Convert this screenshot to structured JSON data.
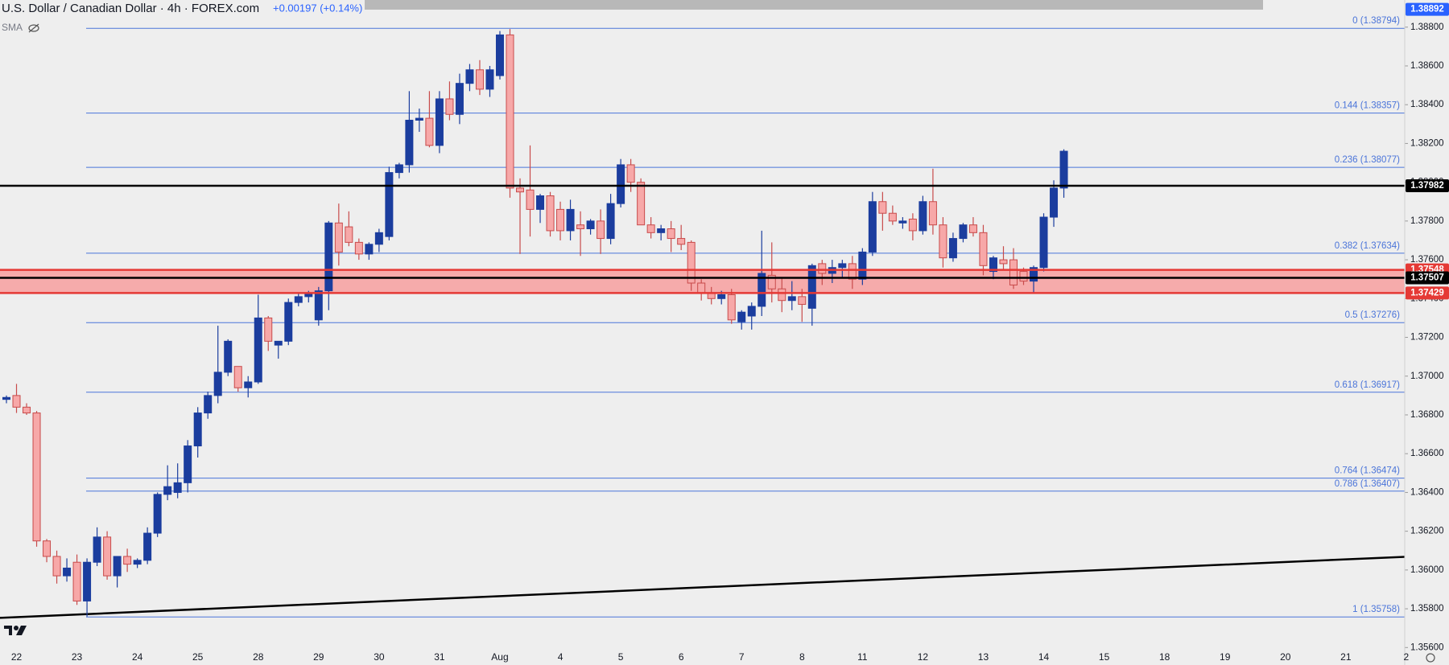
{
  "chart_data": {
    "type": "candlestick",
    "title": "U.S. Dollar / Canadian Dollar · 4h · FOREX.com",
    "subtitle": "+0.00197 (+0.14%)",
    "indicator": "SMA",
    "up_color": "#1b3d9e",
    "down_color": "#f7a8a8",
    "down_border": "#c84b4b",
    "categories": [
      null,
      "22",
      null,
      null,
      null,
      null,
      null,
      "23",
      null,
      null,
      null,
      null,
      null,
      "24",
      null,
      null,
      null,
      null,
      null,
      "25",
      null,
      null,
      null,
      null,
      null,
      "28",
      null,
      null,
      null,
      null,
      null,
      "29",
      null,
      null,
      null,
      null,
      null,
      "30",
      null,
      null,
      null,
      null,
      null,
      "31",
      null,
      null,
      null,
      null,
      null,
      "Aug",
      null,
      null,
      null,
      null,
      null,
      "4",
      null,
      null,
      null,
      null,
      null,
      "5",
      null,
      null,
      null,
      null,
      null,
      "6",
      null,
      null,
      null,
      null,
      null,
      "7",
      null,
      null,
      null,
      null,
      null,
      "8",
      null,
      null,
      null,
      null,
      null,
      "11",
      null,
      null,
      null,
      null,
      null,
      "12",
      null,
      null,
      null,
      null,
      null,
      "13",
      null,
      null,
      null,
      null,
      null,
      "14",
      null,
      null,
      null,
      null,
      null,
      "15",
      null,
      null,
      null,
      null,
      null,
      "18",
      null,
      null,
      null,
      null,
      null,
      "19",
      null,
      null,
      null,
      null,
      null,
      "20",
      null,
      null,
      null,
      null,
      null,
      "21",
      null,
      null,
      null,
      null,
      null,
      "2",
      null,
      null
    ],
    "open": [
      1.3688,
      1.369,
      1.3684,
      1.3681,
      1.3615,
      1.3607,
      1.3597,
      1.3604,
      1.3584,
      1.3604,
      1.3617,
      1.3597,
      1.3607,
      1.3603,
      1.3605,
      1.3619,
      1.3639,
      1.364,
      1.3645,
      1.3664,
      1.3681,
      1.369,
      1.3702,
      1.3705,
      1.3694,
      1.3697,
      1.373,
      1.3716,
      1.3718,
      1.3738,
      1.3741,
      1.3729,
      1.3744,
      1.3779,
      1.3777,
      1.3769,
      1.3763,
      1.3768,
      1.3772,
      1.3805,
      1.3809,
      1.3832,
      1.3833,
      1.3819,
      1.3843,
      1.3835,
      1.3851,
      1.3858,
      1.3848,
      1.3855,
      1.3876,
      1.3797,
      1.3796,
      1.3786,
      1.3793,
      1.3786,
      1.3775,
      1.3778,
      1.3776,
      1.378,
      1.3771,
      1.3789,
      1.3809,
      1.38,
      1.3778,
      1.3774,
      1.3776,
      1.3771,
      1.3769,
      1.3748,
      1.3743,
      1.374,
      1.3742,
      1.3728,
      1.3731,
      1.3736,
      1.3752,
      1.3745,
      1.3739,
      1.3741,
      1.3735,
      1.3758,
      1.3753,
      1.3756,
      1.3758,
      1.375,
      1.3764,
      1.379,
      1.3784,
      1.3779,
      1.3781,
      1.3775,
      1.379,
      1.3778,
      1.3761,
      1.3771,
      1.3778,
      1.3774,
      1.3754,
      1.376,
      1.376,
      1.3754,
      1.3749,
      1.3756,
      1.3782,
      1.3797,
      null,
      null,
      null,
      null,
      null,
      null,
      null,
      null,
      null,
      null,
      null,
      null,
      null,
      null,
      null,
      null,
      null,
      null,
      null,
      null,
      null,
      null,
      null,
      null,
      null,
      null,
      null,
      null,
      null,
      null,
      null,
      null,
      null,
      null,
      null,
      null
    ],
    "high": [
      1.369,
      1.3696,
      1.3686,
      1.3682,
      1.3616,
      1.361,
      1.3606,
      1.3608,
      1.3606,
      1.3622,
      1.362,
      1.3606,
      1.3611,
      1.3606,
      1.3622,
      1.364,
      1.3654,
      1.3655,
      1.3667,
      1.3684,
      1.3692,
      1.3726,
      1.3719,
      1.3705,
      1.37,
      1.3742,
      1.3731,
      1.3718,
      1.374,
      1.3743,
      1.3744,
      1.3746,
      1.378,
      1.3789,
      1.3785,
      1.3771,
      1.3769,
      1.3776,
      1.3808,
      1.381,
      1.3847,
      1.3838,
      1.3847,
      1.3847,
      1.3852,
      1.3856,
      1.3861,
      1.3863,
      1.386,
      1.3878,
      1.3879,
      1.3802,
      1.3819,
      1.3794,
      1.3795,
      1.379,
      1.3791,
      1.3785,
      1.3781,
      1.3786,
      1.3794,
      1.3812,
      1.3812,
      1.3802,
      1.3782,
      1.3778,
      1.378,
      1.3778,
      1.377,
      1.375,
      1.3746,
      1.3744,
      1.3745,
      1.3734,
      1.3738,
      1.3775,
      1.3769,
      1.3751,
      1.3749,
      1.3745,
      1.3758,
      1.376,
      1.376,
      1.376,
      1.3762,
      1.3766,
      1.3795,
      1.3795,
      1.3788,
      1.3782,
      1.3784,
      1.3793,
      1.3807,
      1.3782,
      1.3774,
      1.3779,
      1.3782,
      1.3778,
      1.3762,
      1.3767,
      1.3766,
      1.3756,
      1.3757,
      1.3784,
      1.3801,
      1.3817,
      null,
      null,
      null,
      null,
      null,
      null,
      null,
      null,
      null,
      null,
      null,
      null,
      null,
      null,
      null,
      null,
      null,
      null,
      null,
      null,
      null,
      null,
      null,
      null,
      null,
      null,
      null,
      null,
      null,
      null,
      null,
      null,
      null,
      null,
      null,
      null
    ],
    "low": [
      1.3686,
      1.3681,
      1.368,
      1.3612,
      1.3604,
      1.3593,
      1.3594,
      1.3582,
      1.3576,
      1.3602,
      1.3595,
      1.3591,
      1.3599,
      1.3601,
      1.3603,
      1.3617,
      1.3636,
      1.3637,
      1.364,
      1.3658,
      1.3678,
      1.3686,
      1.37,
      1.3692,
      1.3689,
      1.3696,
      1.3713,
      1.3709,
      1.3716,
      1.3736,
      1.3738,
      1.3726,
      1.3734,
      1.3757,
      1.3767,
      1.376,
      1.376,
      1.3764,
      1.377,
      1.3802,
      1.3805,
      1.3826,
      1.3818,
      1.3815,
      1.3832,
      1.383,
      1.3847,
      1.3845,
      1.3844,
      1.3853,
      1.3792,
      1.3763,
      1.3772,
      1.3779,
      1.3772,
      1.377,
      1.377,
      1.3762,
      1.3773,
      1.3763,
      1.3768,
      1.3787,
      1.3795,
      1.3778,
      1.3771,
      1.377,
      1.3764,
      1.3765,
      1.3744,
      1.3739,
      1.3737,
      1.3737,
      1.3727,
      1.3724,
      1.3724,
      1.3731,
      1.3738,
      1.3733,
      1.3734,
      1.3728,
      1.3726,
      1.3747,
      1.3748,
      1.3751,
      1.3745,
      1.3747,
      1.3762,
      1.3775,
      1.3778,
      1.3776,
      1.377,
      1.3773,
      1.3773,
      1.3756,
      1.3759,
      1.3769,
      1.3772,
      1.3752,
      1.375,
      1.3755,
      1.3745,
      1.3747,
      1.3743,
      1.3754,
      1.3777,
      1.3792,
      null,
      null,
      null,
      null,
      null,
      null,
      null,
      null,
      null,
      null,
      null,
      null,
      null,
      null,
      null,
      null,
      null,
      null,
      null,
      null,
      null,
      null,
      null,
      null,
      null,
      null,
      null,
      null,
      null,
      null,
      null,
      null,
      null,
      null,
      null,
      null
    ],
    "close": [
      1.3689,
      1.3684,
      1.3681,
      1.3615,
      1.3607,
      1.3597,
      1.3601,
      1.3584,
      1.3604,
      1.3617,
      1.3597,
      1.3607,
      1.3603,
      1.3605,
      1.3619,
      1.3639,
      1.3643,
      1.3645,
      1.3664,
      1.3681,
      1.369,
      1.3702,
      1.3718,
      1.3694,
      1.3697,
      1.373,
      1.3718,
      1.3718,
      1.3738,
      1.3741,
      1.3743,
      1.3744,
      1.3779,
      1.3764,
      1.3769,
      1.3763,
      1.3768,
      1.3774,
      1.3805,
      1.3809,
      1.3832,
      1.3833,
      1.3819,
      1.3843,
      1.3835,
      1.3851,
      1.3858,
      1.3848,
      1.3858,
      1.3876,
      1.3797,
      1.3795,
      1.3786,
      1.3793,
      1.3775,
      1.3775,
      1.3786,
      1.3776,
      1.378,
      1.3771,
      1.3789,
      1.3809,
      1.38,
      1.3778,
      1.3774,
      1.3776,
      1.3771,
      1.3768,
      1.3748,
      1.3743,
      1.374,
      1.3742,
      1.3729,
      1.3733,
      1.3736,
      1.3753,
      1.3745,
      1.3739,
      1.3741,
      1.3737,
      1.3757,
      1.3753,
      1.3756,
      1.3758,
      1.375,
      1.3764,
      1.379,
      1.3784,
      1.378,
      1.378,
      1.3775,
      1.379,
      1.3778,
      1.3761,
      1.3771,
      1.3778,
      1.3774,
      1.3757,
      1.3761,
      1.3758,
      1.3747,
      1.3749,
      1.3756,
      1.3782,
      1.3797,
      1.3816,
      null,
      null,
      null,
      null,
      null,
      null,
      null,
      null,
      null,
      null,
      null,
      null,
      null,
      null,
      null,
      null,
      null,
      null,
      null,
      null,
      null,
      null,
      null,
      null,
      null,
      null,
      null,
      null,
      null,
      null,
      null,
      null,
      null,
      null,
      null,
      null
    ],
    "ylim": [
      1.3551,
      1.3894
    ],
    "yticks": [
      {
        "value": 1.356,
        "label": "1.35600"
      },
      {
        "value": 1.358,
        "label": "1.35800"
      },
      {
        "value": 1.36,
        "label": "1.36000"
      },
      {
        "value": 1.362,
        "label": "1.36200"
      },
      {
        "value": 1.364,
        "label": "1.36400"
      },
      {
        "value": 1.366,
        "label": "1.36600"
      },
      {
        "value": 1.368,
        "label": "1.36800"
      },
      {
        "value": 1.37,
        "label": "1.37000"
      },
      {
        "value": 1.372,
        "label": "1.37200"
      },
      {
        "value": 1.374,
        "label": "1.37400"
      },
      {
        "value": 1.376,
        "label": "1.37600"
      },
      {
        "value": 1.378,
        "label": "1.37800"
      },
      {
        "value": 1.38,
        "label": "1.38000"
      },
      {
        "value": 1.382,
        "label": "1.38200"
      },
      {
        "value": 1.384,
        "label": "1.38400"
      },
      {
        "value": 1.386,
        "label": "1.38600"
      },
      {
        "value": 1.388,
        "label": "1.38800"
      }
    ],
    "fib_color": "#4a74d9",
    "fib_levels": [
      {
        "value": 1.38794,
        "label": "0 (1.38794)"
      },
      {
        "value": 1.38357,
        "label": "0.144 (1.38357)"
      },
      {
        "value": 1.38077,
        "label": "0.236 (1.38077)"
      },
      {
        "value": 1.37634,
        "label": "0.382 (1.37634)"
      },
      {
        "value": 1.37276,
        "label": "0.5 (1.37276)"
      },
      {
        "value": 1.36917,
        "label": "0.618 (1.36917)"
      },
      {
        "value": 1.36474,
        "label": "0.764 (1.36474)"
      },
      {
        "value": 1.36407,
        "label": "0.786 (1.36407)"
      },
      {
        "value": 1.35758,
        "label": "1 (1.35758)"
      }
    ],
    "levels": [
      {
        "value": 1.37982,
        "color": "#000000"
      }
    ],
    "zone": {
      "color": "#f6a3a3",
      "levels": [
        {
          "value": 1.37548,
          "color": "#e53935"
        },
        {
          "value": 1.37507,
          "color": "#000000"
        },
        {
          "value": 1.37429,
          "color": "#e53935"
        }
      ]
    },
    "price_tag": {
      "value": 1.38892,
      "color": "#2962ff"
    },
    "trendline": {
      "color": "#000000",
      "values": [
        1.35753,
        1.36068
      ]
    }
  }
}
